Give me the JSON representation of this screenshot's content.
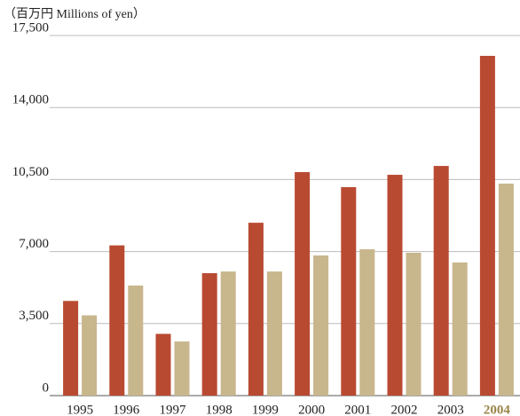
{
  "chart_data": {
    "type": "bar",
    "y_axis_label": "（百万円 Millions of yen）",
    "categories": [
      "1995",
      "1996",
      "1997",
      "1998",
      "1999",
      "2000",
      "2001",
      "2002",
      "2003",
      "2004"
    ],
    "series": [
      {
        "color": "#b94a32",
        "values": [
          4600,
          7300,
          3000,
          5950,
          8400,
          10860,
          10130,
          10730,
          11160,
          16510
        ]
      },
      {
        "color": "#c8b68c",
        "values": [
          3900,
          5350,
          2630,
          6030,
          6030,
          6810,
          7110,
          6940,
          6470,
          10300
        ]
      }
    ],
    "ylim": [
      0,
      17500
    ],
    "yticks": [
      0,
      {
        "value": 3500,
        "label": "3,500"
      },
      {
        "value": 7000,
        "label": "7,000"
      },
      {
        "value": 10500,
        "label": "10,500"
      },
      {
        "value": 14000,
        "label": "14,000"
      },
      {
        "value": 17500,
        "label": "17,500"
      }
    ],
    "grid": true,
    "highlight": {
      "index": 9,
      "color": "#9c8548"
    }
  }
}
